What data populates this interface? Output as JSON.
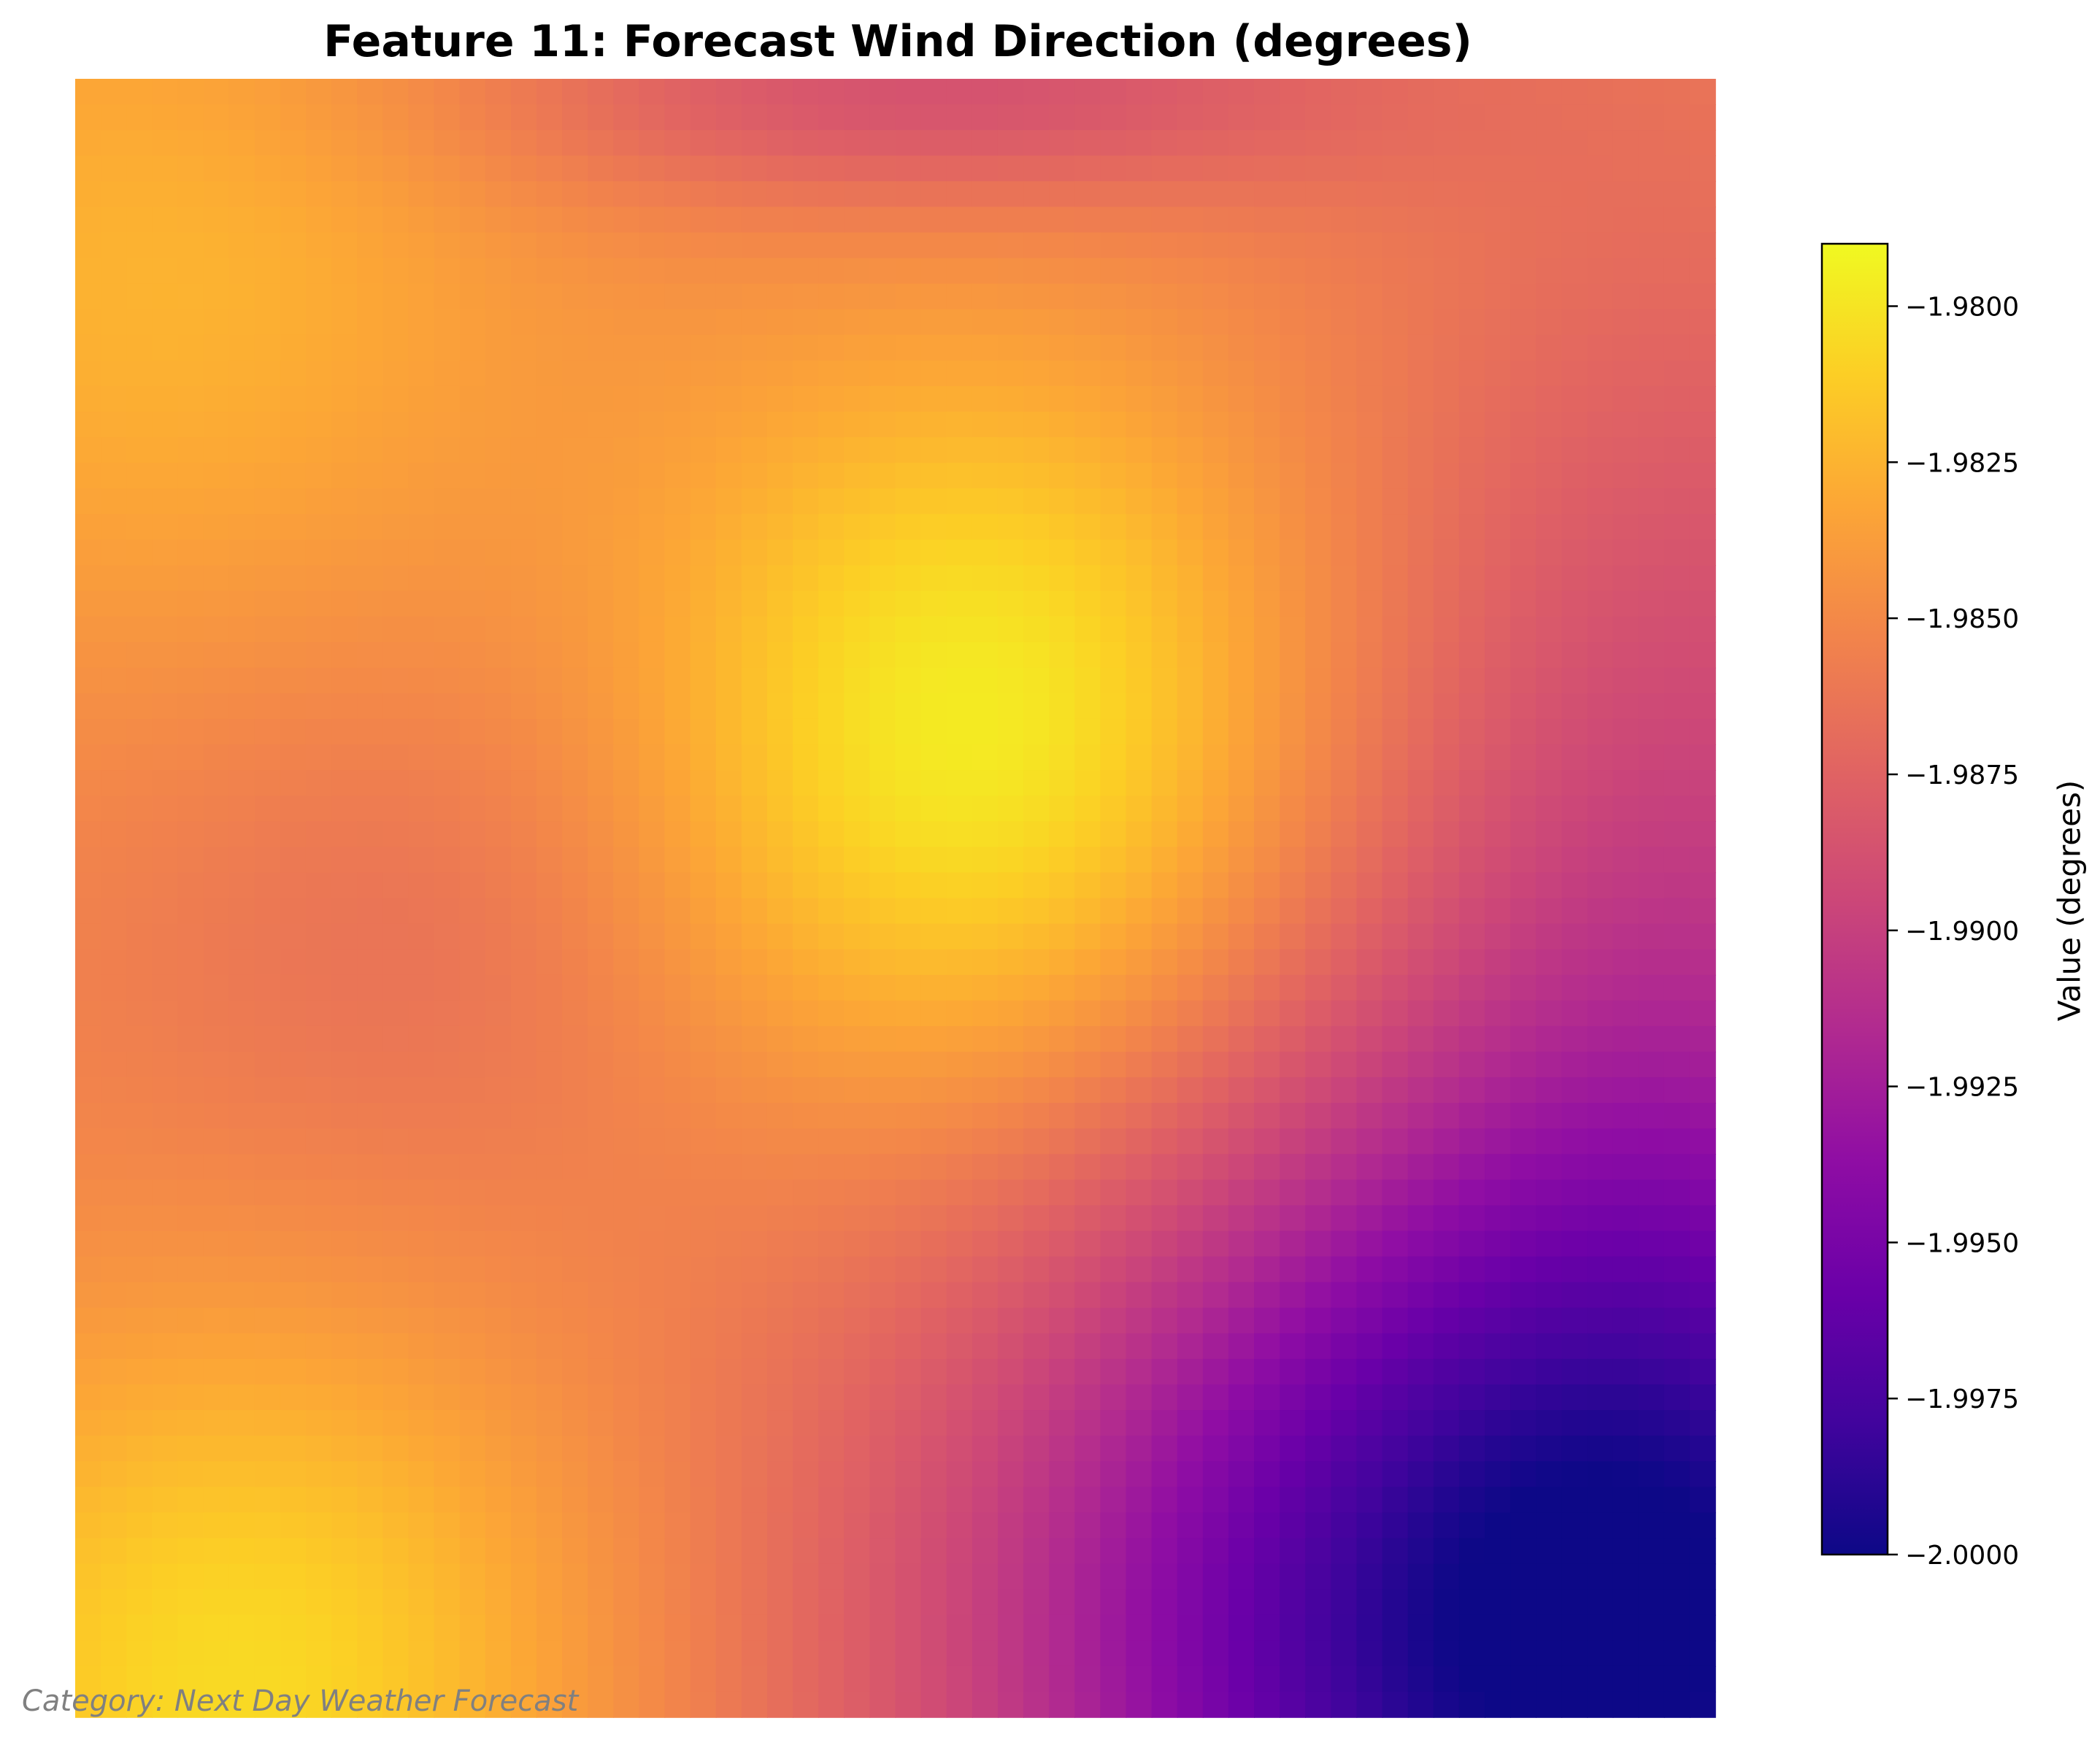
{
  "chart_data": {
    "type": "heatmap",
    "title": "Feature 11: Forecast Wind Direction (degrees)",
    "colormap": "plasma",
    "colorbar": {
      "label": "Value (degrees)",
      "range": [
        -2.0,
        -1.979
      ],
      "ticks": [
        -1.98,
        -1.9825,
        -1.985,
        -1.9875,
        -1.99,
        -1.9925,
        -1.995,
        -1.9975,
        -2.0
      ],
      "tick_labels": [
        "−1.9800",
        "−1.9825",
        "−1.9850",
        "−1.9875",
        "−1.9900",
        "−1.9925",
        "−1.9950",
        "−1.9975",
        "−2.0000"
      ]
    },
    "grid_size": [
      64,
      64
    ],
    "field_features": {
      "base": -1.9855,
      "bumps": [
        {
          "cx": 0.55,
          "cy": 0.4,
          "amp": 0.006,
          "sx": 0.14,
          "sy": 0.16
        },
        {
          "cx": 0.1,
          "cy": 0.98,
          "amp": 0.005,
          "sx": 0.16,
          "sy": 0.16
        },
        {
          "cx": 0.05,
          "cy": 0.12,
          "amp": 0.003,
          "sx": 0.18,
          "sy": 0.18
        },
        {
          "cx": 0.92,
          "cy": 0.95,
          "amp": -0.015,
          "sx": 0.24,
          "sy": 0.22
        },
        {
          "cx": 0.52,
          "cy": 0.01,
          "amp": -0.0035,
          "sx": 0.2,
          "sy": 0.05
        },
        {
          "cx": 0.98,
          "cy": 0.45,
          "amp": -0.0035,
          "sx": 0.14,
          "sy": 0.25
        },
        {
          "cx": 0.2,
          "cy": 0.52,
          "amp": -0.0012,
          "sx": 0.12,
          "sy": 0.12
        }
      ]
    },
    "grid": false,
    "axes_visible": false
  },
  "caption": "Category: Next Day Weather Forecast"
}
